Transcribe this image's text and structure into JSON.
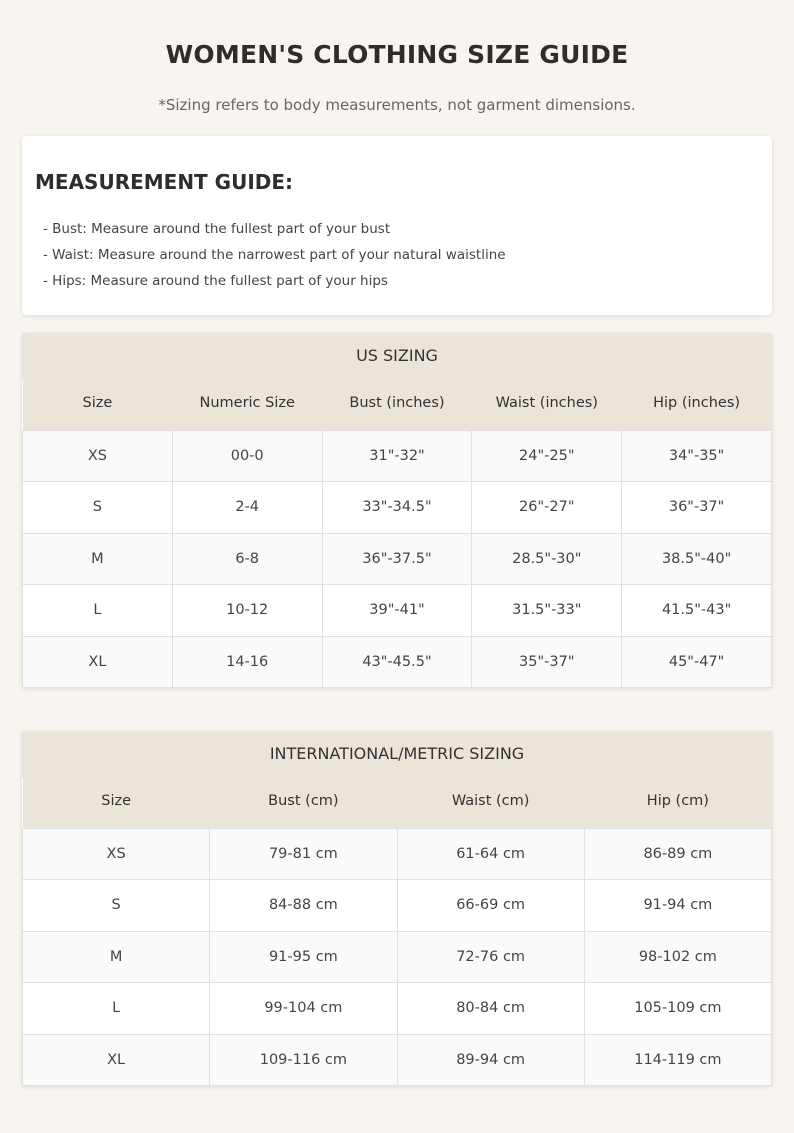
{
  "title": "WOMEN'S CLOTHING SIZE GUIDE",
  "subtitle": "*Sizing refers to body measurements, not garment dimensions.",
  "guide": {
    "heading": "MEASUREMENT GUIDE:",
    "items": [
      "- Bust: Measure around the fullest part of your bust",
      "- Waist: Measure around the narrowest part of your natural waistline",
      "- Hips: Measure around the fullest part of your hips"
    ]
  },
  "us": {
    "title": "US SIZING",
    "headers": [
      "Size",
      "Numeric Size",
      "Bust (inches)",
      "Waist (inches)",
      "Hip (inches)"
    ],
    "rows": [
      [
        "XS",
        "00-0",
        "31\"-32\"",
        "24\"-25\"",
        "34\"-35\""
      ],
      [
        "S",
        "2-4",
        "33\"-34.5\"",
        "26\"-27\"",
        "36\"-37\""
      ],
      [
        "M",
        "6-8",
        "36\"-37.5\"",
        "28.5\"-30\"",
        "38.5\"-40\""
      ],
      [
        "L",
        "10-12",
        "39\"-41\"",
        "31.5\"-33\"",
        "41.5\"-43\""
      ],
      [
        "XL",
        "14-16",
        "43\"-45.5\"",
        "35\"-37\"",
        "45\"-47\""
      ]
    ]
  },
  "intl": {
    "title": "INTERNATIONAL/METRIC SIZING",
    "headers": [
      "Size",
      "Bust (cm)",
      "Waist (cm)",
      "Hip (cm)"
    ],
    "rows": [
      [
        "XS",
        "79-81 cm",
        "61-64 cm",
        "86-89 cm"
      ],
      [
        "S",
        "84-88 cm",
        "66-69 cm",
        "91-94 cm"
      ],
      [
        "M",
        "91-95 cm",
        "72-76 cm",
        "98-102 cm"
      ],
      [
        "L",
        "99-104 cm",
        "80-84 cm",
        "105-109 cm"
      ],
      [
        "XL",
        "109-116 cm",
        "89-94 cm",
        "114-119 cm"
      ]
    ]
  },
  "colors": {
    "background": "#f8f5f1",
    "header": "#ebe4d9",
    "row_alt": "#fafafa"
  }
}
